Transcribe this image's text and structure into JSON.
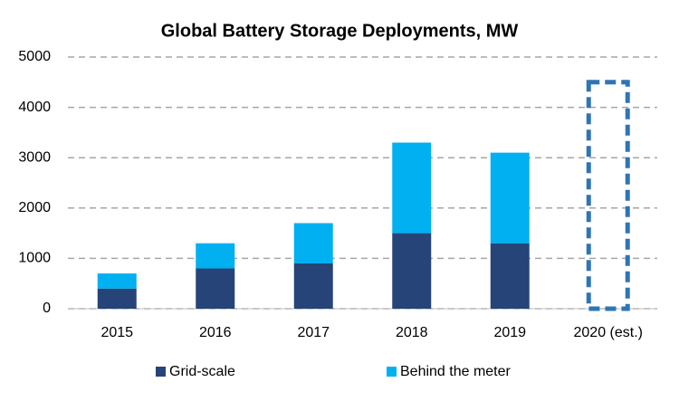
{
  "chart_data": {
    "type": "stacked_bar",
    "title": "Global Battery Storage Deployments, MW",
    "categories": [
      "2015",
      "2016",
      "2017",
      "2018",
      "2019",
      "2020 (est.)"
    ],
    "series": [
      {
        "name": "Grid-scale",
        "color": "#264478",
        "values": [
          400,
          800,
          900,
          1500,
          1300,
          null
        ]
      },
      {
        "name": "Behind the meter",
        "color": "#00b0f0",
        "values": [
          300,
          500,
          800,
          1800,
          1800,
          null
        ]
      }
    ],
    "estimates": {
      "color": "#2e75b6",
      "values": [
        null,
        null,
        null,
        null,
        null,
        4500
      ]
    },
    "ylim": [
      0,
      5000
    ],
    "yticks": [
      0,
      1000,
      2000,
      3000,
      4000,
      5000
    ],
    "grid": true,
    "legend": "bottom"
  }
}
